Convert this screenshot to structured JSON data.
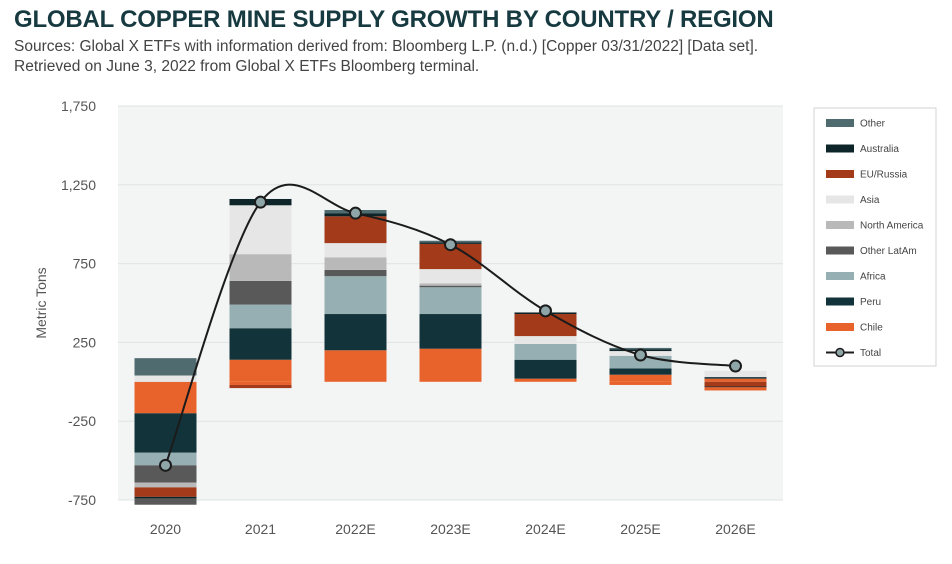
{
  "title": "GLOBAL COPPER MINE SUPPLY GROWTH BY COUNTRY / REGION",
  "subtitle_line1": "Sources: Global X ETFs with information derived from: Bloomberg L.P. (n.d.) [Copper 03/31/2022] [Data set].",
  "subtitle_line2": "Retrieved on June 3, 2022 from Global X ETFs Bloomberg terminal.",
  "chart_data": {
    "type": "bar",
    "stacked": true,
    "title": "GLOBAL COPPER MINE SUPPLY GROWTH BY COUNTRY / REGION",
    "xlabel": "",
    "ylabel": "Metric Tons",
    "ylim": [
      -750,
      1750
    ],
    "yticks": [
      -750,
      -250,
      250,
      750,
      1250,
      1750
    ],
    "ytick_labels": [
      "-750",
      "-250",
      "250",
      "750",
      "1,250",
      "1,750"
    ],
    "grid": true,
    "legend_position": "right",
    "categories": [
      "2020",
      "2021",
      "2022E",
      "2023E",
      "2024E",
      "2025E",
      "2026E"
    ],
    "series": [
      {
        "name": "Chile",
        "color": "#e8632b",
        "values": [
          -200,
          140,
          200,
          210,
          20,
          45,
          20
        ]
      },
      {
        "name": "Peru",
        "color": "#12333a",
        "values": [
          -250,
          200,
          230,
          220,
          120,
          40,
          10
        ]
      },
      {
        "name": "Africa",
        "color": "#96afb3",
        "values": [
          -80,
          150,
          240,
          170,
          100,
          80,
          0
        ]
      },
      {
        "name": "Other LatAm",
        "color": "#595959",
        "values": [
          -110,
          150,
          40,
          10,
          0,
          0,
          0
        ]
      },
      {
        "name": "North America",
        "color": "#b9b9b9",
        "values": [
          -30,
          170,
          80,
          15,
          0,
          0,
          0
        ]
      },
      {
        "name": "Asia",
        "color": "#e6e6e6",
        "values": [
          40,
          310,
          90,
          90,
          50,
          30,
          40
        ]
      },
      {
        "name": "EU/Russia",
        "color": "#a33a1a",
        "values": [
          -60,
          0,
          170,
          160,
          140,
          0,
          -30
        ]
      },
      {
        "name": "Australia",
        "color": "#0d2428",
        "values": [
          -10,
          40,
          20,
          10,
          10,
          10,
          -5
        ]
      },
      {
        "name": "Other",
        "color": "#4f6b6f",
        "values": [
          110,
          0,
          20,
          10,
          0,
          10,
          0
        ]
      }
    ],
    "negative_extra": [
      {
        "category": "2020",
        "name": "Other LatAm",
        "color": "#595959",
        "value": -40
      },
      {
        "category": "2021",
        "name": "Chile",
        "color": "#e8632b",
        "value": -20
      },
      {
        "category": "2021",
        "name": "EU/Russia",
        "color": "#a33a1a",
        "value": -20
      },
      {
        "category": "2025E",
        "name": "Chile",
        "color": "#e8632b",
        "value": -20
      },
      {
        "category": "2026E",
        "name": "Chile",
        "color": "#e8632b",
        "value": -20
      }
    ],
    "total": {
      "name": "Total",
      "values": [
        -530,
        1140,
        1070,
        870,
        450,
        170,
        100
      ]
    },
    "legend": [
      "Other",
      "Australia",
      "EU/Russia",
      "Asia",
      "North America",
      "Other LatAm",
      "Africa",
      "Peru",
      "Chile",
      "Total"
    ]
  }
}
